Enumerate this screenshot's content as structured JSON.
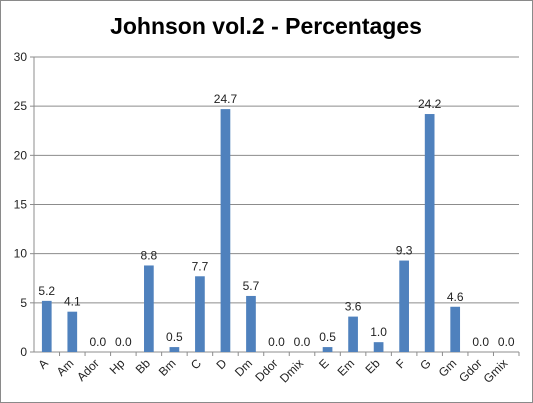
{
  "chart_data": {
    "type": "bar",
    "title": "Johnson vol.2 - Percentages",
    "xlabel": "",
    "ylabel": "",
    "ylim": [
      0,
      30
    ],
    "yticks": [
      0,
      5,
      10,
      15,
      20,
      25,
      30
    ],
    "grid": true,
    "legend": "none",
    "bar_color": "#4F81BD",
    "categories": [
      "A",
      "Am",
      "Ador",
      "Hp",
      "Bb",
      "Bm",
      "C",
      "D",
      "Dm",
      "Ddor",
      "Dmix",
      "E",
      "Em",
      "Eb",
      "F",
      "G",
      "Gm",
      "Gdor",
      "Gmix"
    ],
    "values": [
      5.2,
      4.1,
      0.0,
      0.0,
      8.8,
      0.5,
      7.7,
      24.7,
      5.7,
      0.0,
      0.0,
      0.5,
      3.6,
      1.0,
      9.3,
      24.2,
      4.6,
      0.0,
      0.0
    ],
    "labels": [
      "5.2",
      "4.1",
      "0.0",
      "0.0",
      "8.8",
      "0.5",
      "7.7",
      "24.7",
      "5.7",
      "0.0",
      "0.0",
      "0.5",
      "3.6",
      "1.0",
      "9.3",
      "24.2",
      "4.6",
      "0.0",
      "0.0"
    ]
  }
}
